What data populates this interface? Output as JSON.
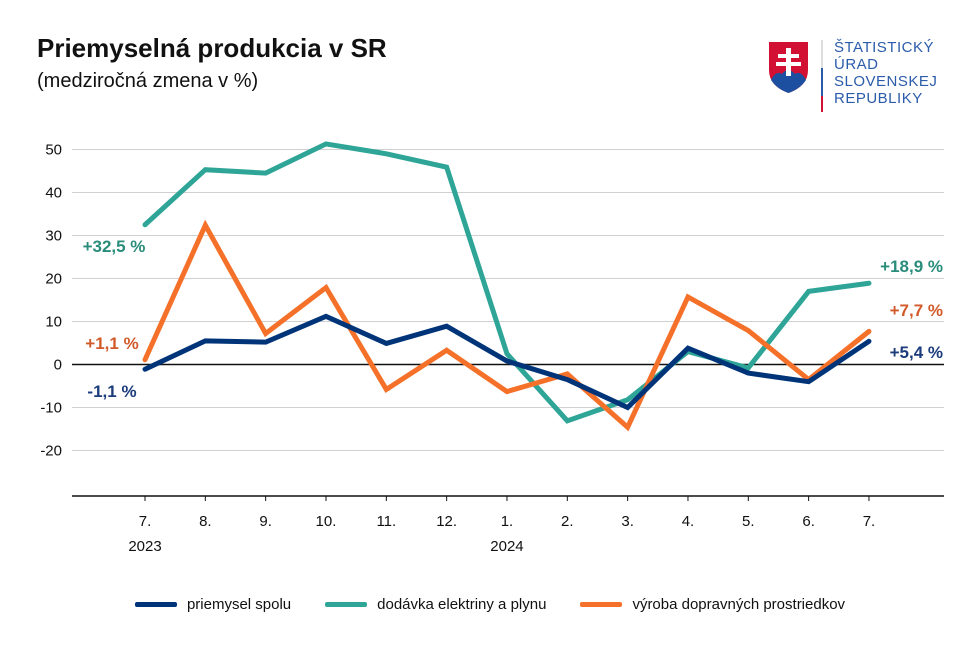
{
  "header": {
    "title": "Priemyselná produkcia v SR",
    "subtitle": "(medziročná zmena v %)"
  },
  "logo": {
    "lines": [
      "ŠTATISTICKÝ",
      "ÚRAD",
      "SLOVENSKEJ",
      "REPUBLIKY"
    ]
  },
  "chart_data": {
    "type": "line",
    "title": "Priemyselná produkcia v SR",
    "subtitle": "(medziročná zmena v %)",
    "categories": [
      "7.",
      "8.",
      "9.",
      "10.",
      "11.",
      "12.",
      "1.",
      "2.",
      "3.",
      "4.",
      "5.",
      "6.",
      "7."
    ],
    "year_labels": [
      {
        "index": 0,
        "label": "2023"
      },
      {
        "index": 6,
        "label": "2024"
      }
    ],
    "yticks": [
      50,
      40,
      30,
      20,
      10,
      0,
      -10,
      -20
    ],
    "ytick_labels": [
      "50",
      "40",
      "30",
      "20",
      "10",
      "0",
      "-10",
      "-20"
    ],
    "ylim": [
      -30,
      55
    ],
    "grid": true,
    "legend_position": "bottom",
    "series": [
      {
        "name": "priemysel spolu",
        "color": "#003479",
        "values": [
          -1.1,
          5.5,
          5.2,
          11.2,
          4.9,
          8.9,
          0.8,
          -3.5,
          -10.0,
          3.8,
          -2.0,
          -4.0,
          5.4
        ],
        "start_label": "-1,1 %",
        "end_label": "+5,4 %"
      },
      {
        "name": "dodávka elektriny a plynu",
        "color": "#2ea597",
        "values": [
          32.5,
          45.3,
          44.5,
          51.3,
          49.0,
          45.9,
          2.5,
          -13.1,
          -8.2,
          3.0,
          -0.8,
          17.0,
          18.9
        ],
        "start_label": "+32,5 %",
        "end_label": "+18,9 %"
      },
      {
        "name": "výroba dopravných prostriedkov",
        "color": "#f5712a",
        "values": [
          1.1,
          32.4,
          7.2,
          17.9,
          -5.8,
          3.3,
          -6.3,
          -2.2,
          -14.6,
          15.7,
          7.9,
          -3.5,
          7.7
        ],
        "start_label": "+1,1 %",
        "end_label": "+7,7 %"
      }
    ]
  },
  "label_colors": {
    "blue": "#1c3c7c",
    "teal": "#2a8c7a",
    "orange": "#d25a2a"
  }
}
